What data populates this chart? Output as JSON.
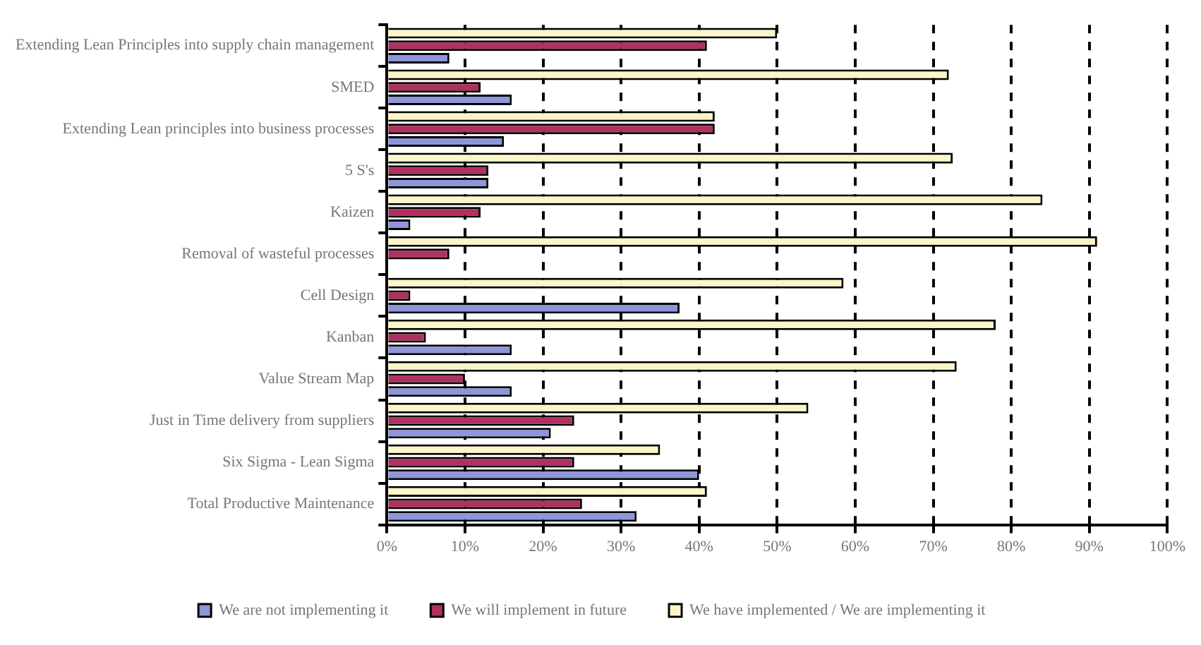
{
  "chart_data": {
    "type": "bar",
    "orientation": "horizontal",
    "categories": [
      "Extending Lean Principles into supply chain management",
      "SMED",
      "Extending Lean principles into business processes",
      "5 S's",
      "Kaizen",
      "Removal of wasteful processes",
      "Cell Design",
      "Kanban",
      "Value Stream Map",
      "Just in Time delivery from suppliers",
      "Six Sigma - Lean Sigma",
      "Total Productive Maintenance"
    ],
    "series": [
      {
        "name": "We have implemented / We are implementing it",
        "color": "#fcf5c8",
        "values": [
          50,
          72,
          42,
          72.5,
          84,
          91,
          58.5,
          78,
          73,
          54,
          35,
          41
        ]
      },
      {
        "name": "We will implement in future",
        "color": "#b03060",
        "values": [
          41,
          12,
          42,
          13,
          12,
          8,
          3,
          5,
          10,
          24,
          24,
          25
        ]
      },
      {
        "name": "We are not implementing it",
        "color": "#8c96d8",
        "values": [
          8,
          16,
          15,
          13,
          3,
          0,
          37.5,
          16,
          16,
          21,
          40,
          32
        ]
      }
    ],
    "xlim": [
      0,
      100
    ],
    "xticks": [
      {
        "value": 0,
        "label": "0%"
      },
      {
        "value": 10,
        "label": "10%"
      },
      {
        "value": 20,
        "label": "20%"
      },
      {
        "value": 30,
        "label": "30%"
      },
      {
        "value": 40,
        "label": "40%"
      },
      {
        "value": 50,
        "label": "50%"
      },
      {
        "value": 60,
        "label": "60%"
      },
      {
        "value": 70,
        "label": "70%"
      },
      {
        "value": 80,
        "label": "80%"
      },
      {
        "value": 90,
        "label": "90%"
      },
      {
        "value": 100,
        "label": "100%"
      }
    ],
    "grid": "x",
    "legend": "bottom"
  }
}
